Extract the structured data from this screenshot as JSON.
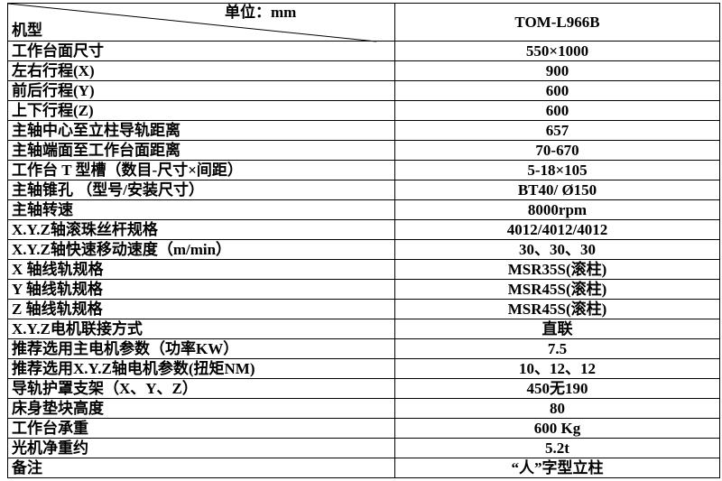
{
  "header": {
    "unit_label": "单位：mm",
    "model_label": "机型",
    "model_value": "TOM-L966B"
  },
  "rows": [
    {
      "label": "工作台面尺寸",
      "value": "550×1000"
    },
    {
      "label": "左右行程(X)",
      "value": "900"
    },
    {
      "label": "前后行程(Y)",
      "value": "600"
    },
    {
      "label": "上下行程(Z)",
      "value": "600"
    },
    {
      "label": "主轴中心至立柱导轨距离",
      "value": "657"
    },
    {
      "label": "主轴端面至工作台面距离",
      "value": "70-670"
    },
    {
      "label": "工作台 T 型槽（数目-尺寸×间距）",
      "value": "5-18×105"
    },
    {
      "label": "主轴锥孔 （型号/安装尺寸）",
      "value": "BT40/ Ø150"
    },
    {
      "label": "主轴转速",
      "value": "8000rpm"
    },
    {
      "label": "X.Y.Z轴滚珠丝杆规格",
      "value": "4012/4012/4012"
    },
    {
      "label": "X.Y.Z轴快速移动速度（m/min）",
      "value": "30、30、30"
    },
    {
      "label": "X 轴线轨规格",
      "value": "MSR35S(滚柱)"
    },
    {
      "label": "Y 轴线轨规格",
      "value": "MSR45S(滚柱)"
    },
    {
      "label": "Z 轴线轨规格",
      "value": "MSR45S(滚柱)"
    },
    {
      "label": "X.Y.Z电机联接方式",
      "value": "直联"
    },
    {
      "label": "推荐选用主电机参数（功率KW）",
      "value": "7.5"
    },
    {
      "label": "推荐选用X.Y.Z轴电机参数(扭矩NM)",
      "value": "10、12、12"
    },
    {
      "label": "导轨护罩支架（X、Y、Z）",
      "value": "450无190"
    },
    {
      "label": "床身垫块高度",
      "value": "80"
    },
    {
      "label": "工作台承重",
      "value": "600 Kg"
    },
    {
      "label": "光机净重约",
      "value": "5.2t"
    },
    {
      "label": "备注",
      "value": "“人”字型立柱"
    }
  ]
}
